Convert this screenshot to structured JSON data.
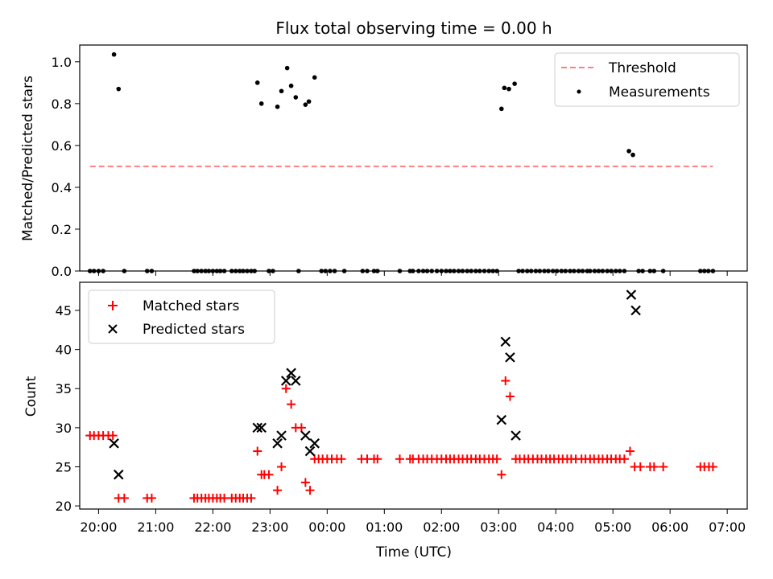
{
  "title": "Flux total observing time = 0.00 h",
  "chart_data": [
    {
      "type": "scatter",
      "ylabel": "Matched/Predicted stars",
      "xlim": [
        19.67,
        7.35
      ],
      "ylim": [
        0.0,
        1.08
      ],
      "yticks": [
        "0.0",
        "0.2",
        "0.4",
        "0.6",
        "0.8",
        "1.0"
      ],
      "threshold": {
        "name": "Threshold",
        "value": 0.5,
        "x_start": 19.85,
        "x_end": 6.75,
        "color": "#ff7f7f"
      },
      "legend": {
        "location": "upper right",
        "entries": [
          "Threshold",
          "Measurements"
        ]
      },
      "series": [
        {
          "name": "Measurements",
          "marker": "dot",
          "color": "#000000",
          "x": [
            19.85,
            19.92,
            20.0,
            20.08,
            20.27,
            20.35,
            20.45,
            20.85,
            20.93,
            21.67,
            21.73,
            21.8,
            21.87,
            21.93,
            22.0,
            22.07,
            22.13,
            22.2,
            22.33,
            22.4,
            22.47,
            22.53,
            22.6,
            22.67,
            22.73,
            22.78,
            22.85,
            22.98,
            23.05,
            23.13,
            23.2,
            23.3,
            23.37,
            23.45,
            23.5,
            23.62,
            23.68,
            23.78,
            23.9,
            23.97,
            24.05,
            24.13,
            24.3,
            24.62,
            24.7,
            24.82,
            24.88,
            25.27,
            25.45,
            25.5,
            25.6,
            25.68,
            25.75,
            25.83,
            25.92,
            26.0,
            26.08,
            26.15,
            26.22,
            26.3,
            26.37,
            26.45,
            26.52,
            26.6,
            26.67,
            26.75,
            26.83,
            26.9,
            26.97,
            27.05,
            27.1,
            27.18,
            27.28,
            27.35,
            27.42,
            27.5,
            27.57,
            27.65,
            27.72,
            27.8,
            27.87,
            27.95,
            28.02,
            28.1,
            28.17,
            28.25,
            28.32,
            28.4,
            28.47,
            28.55,
            28.6,
            28.68,
            28.75,
            28.82,
            28.9,
            28.97,
            29.05,
            29.12,
            29.2,
            29.28,
            29.35,
            29.45,
            29.52,
            29.65,
            29.72,
            29.88,
            30.53,
            30.6,
            30.67,
            30.75
          ],
          "y": [
            0.0,
            0.0,
            0.0,
            0.0,
            1.035,
            0.87,
            0.0,
            0.0,
            0.0,
            0.0,
            0.0,
            0.0,
            0.0,
            0.0,
            0.0,
            0.0,
            0.0,
            0.0,
            0.0,
            0.0,
            0.0,
            0.0,
            0.0,
            0.0,
            0.0,
            0.9,
            0.8,
            0.0,
            0.0,
            0.785,
            0.86,
            0.97,
            0.885,
            0.83,
            0.0,
            0.795,
            0.81,
            0.925,
            0.0,
            0.0,
            0.0,
            0.0,
            0.0,
            0.0,
            0.0,
            0.0,
            0.0,
            0.0,
            0.0,
            0.0,
            0.0,
            0.0,
            0.0,
            0.0,
            0.0,
            0.0,
            0.0,
            0.0,
            0.0,
            0.0,
            0.0,
            0.0,
            0.0,
            0.0,
            0.0,
            0.0,
            0.0,
            0.0,
            0.0,
            0.775,
            0.875,
            0.87,
            0.895,
            0.0,
            0.0,
            0.0,
            0.0,
            0.0,
            0.0,
            0.0,
            0.0,
            0.0,
            0.0,
            0.0,
            0.0,
            0.0,
            0.0,
            0.0,
            0.0,
            0.0,
            0.0,
            0.0,
            0.0,
            0.0,
            0.0,
            0.0,
            0.0,
            0.0,
            0.0,
            0.573,
            0.555,
            0.0,
            0.0,
            0.0,
            0.0,
            0.0,
            0.0,
            0.0,
            0.0,
            0.0
          ]
        }
      ]
    },
    {
      "type": "scatter",
      "xlabel": "Time (UTC)",
      "ylabel": "Count",
      "xlim": [
        19.67,
        7.35
      ],
      "ylim": [
        19.6,
        48.6
      ],
      "xticks": [
        "20:00",
        "21:00",
        "22:00",
        "23:00",
        "00:00",
        "01:00",
        "02:00",
        "03:00",
        "04:00",
        "05:00",
        "06:00",
        "07:00"
      ],
      "yticks": [
        "20",
        "25",
        "30",
        "35",
        "40",
        "45"
      ],
      "legend": {
        "location": "upper left",
        "entries": [
          "Matched stars",
          "Predicted stars"
        ]
      },
      "series": [
        {
          "name": "Matched stars",
          "marker": "plus",
          "color": "#ff0000",
          "x": [
            19.85,
            19.92,
            20.0,
            20.08,
            20.17,
            20.25,
            20.35,
            20.45,
            20.85,
            20.93,
            21.67,
            21.73,
            21.8,
            21.87,
            21.93,
            22.0,
            22.07,
            22.13,
            22.2,
            22.33,
            22.4,
            22.47,
            22.53,
            22.6,
            22.67,
            22.78,
            22.85,
            22.9,
            22.98,
            23.13,
            23.2,
            23.28,
            23.37,
            23.45,
            23.55,
            23.62,
            23.7,
            23.78,
            23.85,
            23.92,
            24.0,
            24.08,
            24.17,
            24.25,
            24.6,
            24.7,
            24.82,
            24.88,
            25.27,
            25.45,
            25.5,
            25.6,
            25.68,
            25.75,
            25.83,
            25.92,
            26.0,
            26.08,
            26.15,
            26.22,
            26.3,
            26.37,
            26.45,
            26.52,
            26.6,
            26.67,
            26.75,
            26.83,
            26.9,
            26.97,
            27.05,
            27.12,
            27.2,
            27.3,
            27.37,
            27.45,
            27.52,
            27.6,
            27.68,
            27.75,
            27.83,
            27.9,
            27.97,
            28.05,
            28.12,
            28.2,
            28.27,
            28.35,
            28.45,
            28.52,
            28.6,
            28.67,
            28.75,
            28.82,
            28.9,
            28.97,
            29.05,
            29.12,
            29.2,
            29.3,
            29.38,
            29.48,
            29.65,
            29.72,
            29.88,
            30.53,
            30.6,
            30.68,
            30.75
          ],
          "y": [
            29,
            29,
            29,
            29,
            29,
            29,
            21,
            21,
            21,
            21,
            21,
            21,
            21,
            21,
            21,
            21,
            21,
            21,
            21,
            21,
            21,
            21,
            21,
            21,
            21,
            27,
            24,
            24,
            24,
            22,
            25,
            35,
            33,
            30,
            30,
            23,
            22,
            26,
            26,
            26,
            26,
            26,
            26,
            26,
            26,
            26,
            26,
            26,
            26,
            26,
            26,
            26,
            26,
            26,
            26,
            26,
            26,
            26,
            26,
            26,
            26,
            26,
            26,
            26,
            26,
            26,
            26,
            26,
            26,
            26,
            24,
            36,
            34,
            26,
            26,
            26,
            26,
            26,
            26,
            26,
            26,
            26,
            26,
            26,
            26,
            26,
            26,
            26,
            26,
            26,
            26,
            26,
            26,
            26,
            26,
            26,
            26,
            26,
            26,
            27,
            25,
            25,
            25,
            25,
            25,
            25,
            25,
            25,
            25
          ]
        },
        {
          "name": "Predicted stars",
          "marker": "x",
          "color": "#000000",
          "x": [
            20.27,
            20.35,
            22.78,
            22.85,
            23.13,
            23.2,
            23.28,
            23.37,
            23.45,
            23.62,
            23.7,
            23.78,
            27.05,
            27.12,
            27.2,
            27.3,
            29.32,
            29.4
          ],
          "y": [
            28,
            24,
            30,
            30,
            28,
            29,
            36,
            37,
            36,
            29,
            27,
            28,
            31,
            41,
            39,
            29,
            47,
            45
          ]
        }
      ]
    }
  ]
}
